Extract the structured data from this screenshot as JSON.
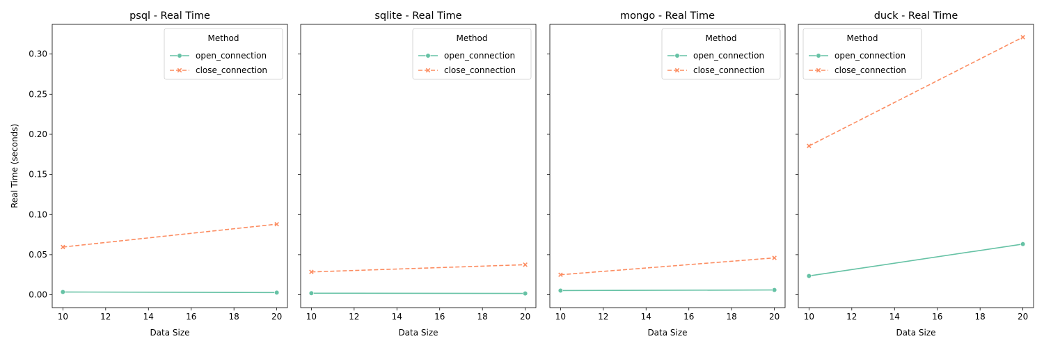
{
  "chart_data": [
    {
      "type": "line",
      "title": "psql - Real Time",
      "xlabel": "Data Size",
      "ylabel": "Real Time (seconds)",
      "x": [
        10,
        20
      ],
      "xlim": [
        9.5,
        20.5
      ],
      "ylim": [
        -0.016,
        0.337
      ],
      "xticks": [
        "10",
        "12",
        "14",
        "16",
        "18",
        "20"
      ],
      "yticks": [
        "0.00",
        "0.05",
        "0.10",
        "0.15",
        "0.20",
        "0.25",
        "0.30"
      ],
      "legend": {
        "title": "Method",
        "position": "top-right"
      },
      "series": [
        {
          "name": "open_connection",
          "values": [
            0.0035,
            0.0028
          ]
        },
        {
          "name": "close_connection",
          "values": [
            0.0595,
            0.088
          ]
        }
      ]
    },
    {
      "type": "line",
      "title": "sqlite - Real Time",
      "xlabel": "Data Size",
      "ylabel": "",
      "x": [
        10,
        20
      ],
      "xlim": [
        9.5,
        20.5
      ],
      "ylim": [
        -0.016,
        0.337
      ],
      "xticks": [
        "10",
        "12",
        "14",
        "16",
        "18",
        "20"
      ],
      "yticks": [],
      "legend": {
        "title": "Method",
        "position": "top-right"
      },
      "series": [
        {
          "name": "open_connection",
          "values": [
            0.002,
            0.0017
          ]
        },
        {
          "name": "close_connection",
          "values": [
            0.0285,
            0.0375
          ]
        }
      ]
    },
    {
      "type": "line",
      "title": "mongo - Real Time",
      "xlabel": "Data Size",
      "ylabel": "",
      "x": [
        10,
        20
      ],
      "xlim": [
        9.5,
        20.5
      ],
      "ylim": [
        -0.016,
        0.337
      ],
      "xticks": [
        "10",
        "12",
        "14",
        "16",
        "18",
        "20"
      ],
      "yticks": [],
      "legend": {
        "title": "Method",
        "position": "top-right"
      },
      "series": [
        {
          "name": "open_connection",
          "values": [
            0.0053,
            0.006
          ]
        },
        {
          "name": "close_connection",
          "values": [
            0.025,
            0.046
          ]
        }
      ]
    },
    {
      "type": "line",
      "title": "duck - Real Time",
      "xlabel": "Data Size",
      "ylabel": "",
      "x": [
        10,
        20
      ],
      "xlim": [
        9.5,
        20.5
      ],
      "ylim": [
        -0.016,
        0.337
      ],
      "xticks": [
        "10",
        "12",
        "14",
        "16",
        "18",
        "20"
      ],
      "yticks": [],
      "legend": {
        "title": "Method",
        "position": "top-left"
      },
      "series": [
        {
          "name": "open_connection",
          "values": [
            0.0235,
            0.0632
          ]
        },
        {
          "name": "close_connection",
          "values": [
            0.1855,
            0.321
          ]
        }
      ]
    }
  ],
  "colors": {
    "open_connection": "#66c2a5",
    "close_connection": "#fc8d62"
  }
}
